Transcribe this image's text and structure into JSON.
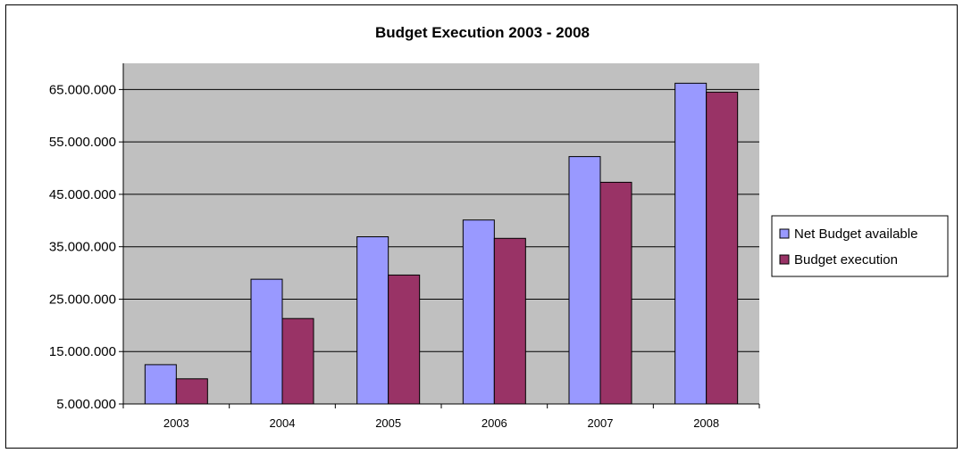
{
  "chart_data": {
    "type": "bar",
    "title": "Budget Execution 2003 - 2008",
    "xlabel": "",
    "ylabel": "",
    "categories": [
      "2003",
      "2004",
      "2005",
      "2006",
      "2007",
      "2008"
    ],
    "series": [
      {
        "name": "Net Budget available",
        "color": "#9999ff",
        "values": [
          12500000,
          28800000,
          36900000,
          40100000,
          52200000,
          66200000
        ]
      },
      {
        "name": "Budget execution",
        "color": "#993366",
        "values": [
          9800000,
          21300000,
          29600000,
          36600000,
          47300000,
          64500000
        ]
      }
    ],
    "ylim": [
      5000000,
      70000000
    ],
    "yticks": [
      5000000,
      15000000,
      25000000,
      35000000,
      45000000,
      55000000,
      65000000
    ],
    "ytick_labels": [
      "5.000.000",
      "15.000.000",
      "25.000.000",
      "35.000.000",
      "45.000.000",
      "55.000.000",
      "65.000.000"
    ],
    "grid": true,
    "plot_background": "#c0c0c0",
    "legend_position": "right"
  }
}
